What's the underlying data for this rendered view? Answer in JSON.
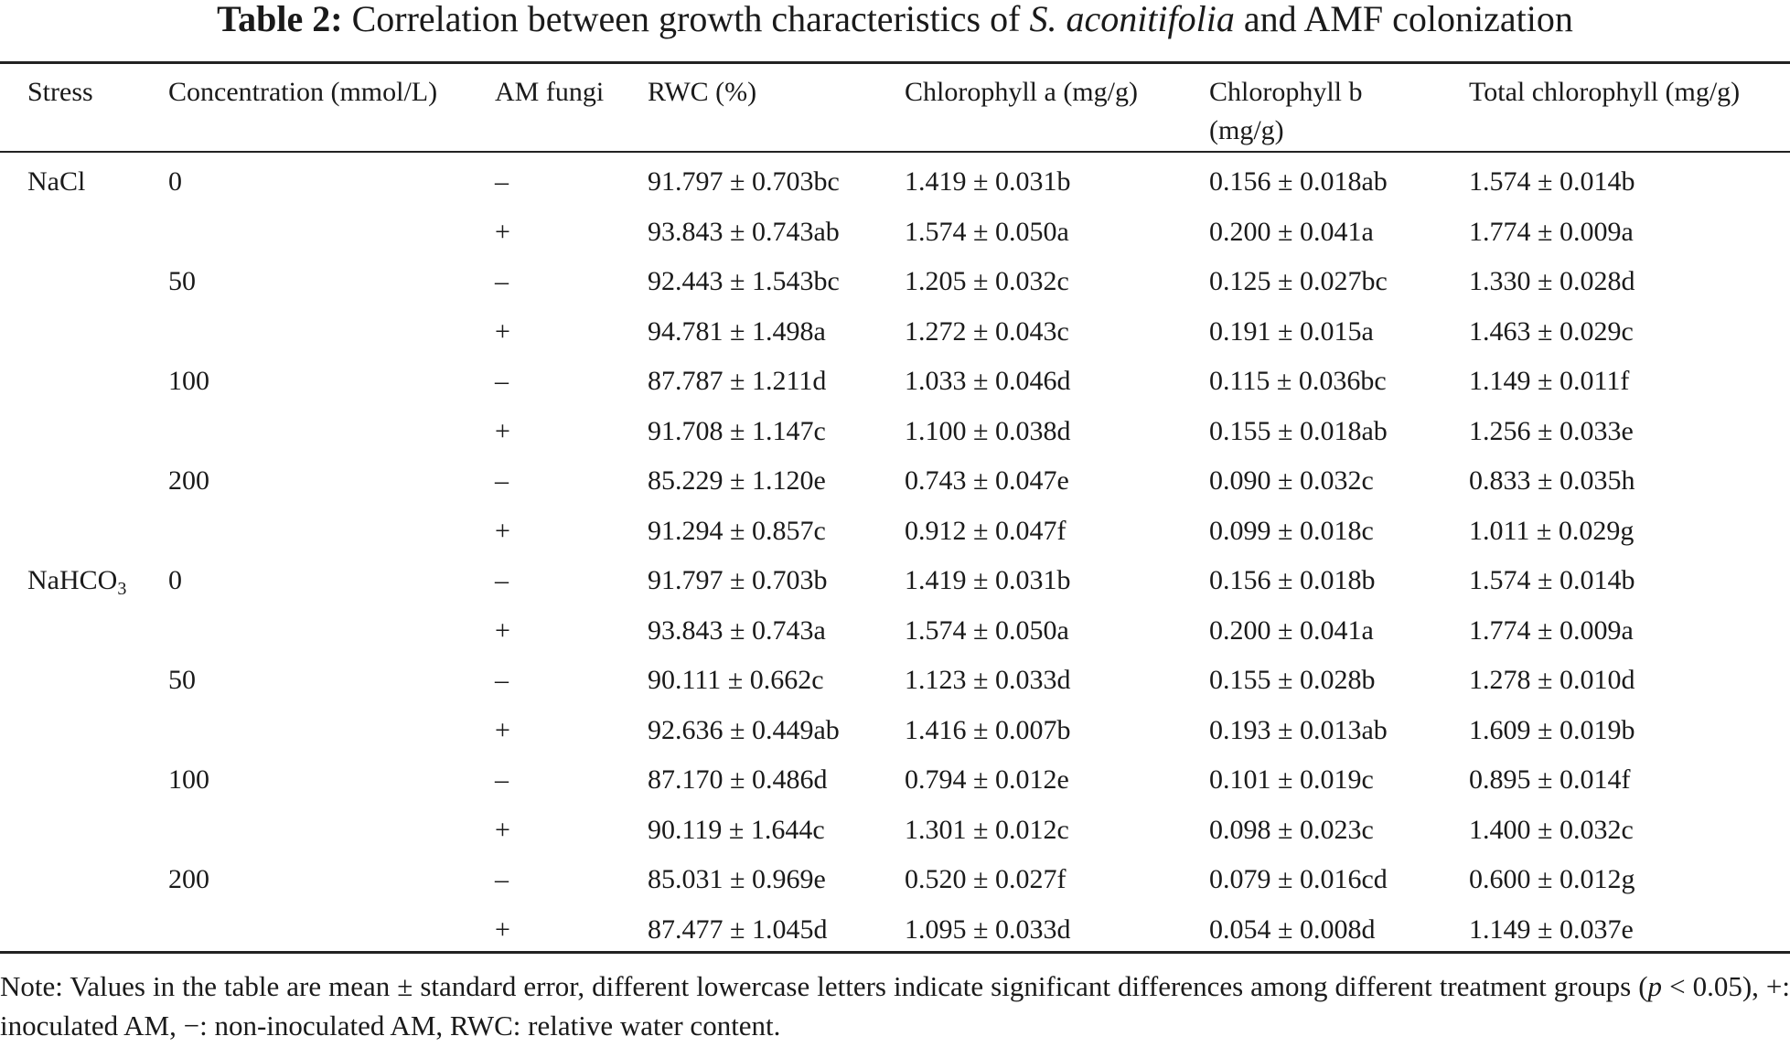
{
  "caption": {
    "label": "Table 2:",
    "pre": "Correlation between growth characteristics of",
    "species": "S. aconitifolia",
    "post": "and AMF colonization"
  },
  "columns": [
    "Stress",
    "Concentration (mmol/L)",
    "AM fungi",
    "RWC (%)",
    "Chlorophyll a (mg/g)",
    "Chlorophyll b (mg/g)",
    "Total chlorophyll (mg/g)"
  ],
  "stress_labels": {
    "nacl": "NaCl",
    "nahco3_base": "NaHCO",
    "nahco3_sub": "3"
  },
  "rows": [
    {
      "conc": "0",
      "am": "–",
      "rwc": "91.797 ± 0.703bc",
      "chla": "1.419 ± 0.031b",
      "chlb": "0.156 ± 0.018ab",
      "total": "1.574 ± 0.014b"
    },
    {
      "conc": "",
      "am": "+",
      "rwc": "93.843 ± 0.743ab",
      "chla": "1.574 ± 0.050a",
      "chlb": "0.200 ± 0.041a",
      "total": "1.774 ± 0.009a"
    },
    {
      "conc": "50",
      "am": "–",
      "rwc": "92.443 ± 1.543bc",
      "chla": "1.205 ± 0.032c",
      "chlb": "0.125 ± 0.027bc",
      "total": "1.330 ± 0.028d"
    },
    {
      "conc": "",
      "am": "+",
      "rwc": "94.781 ± 1.498a",
      "chla": "1.272 ± 0.043c",
      "chlb": "0.191 ± 0.015a",
      "total": "1.463 ± 0.029c"
    },
    {
      "conc": "100",
      "am": "–",
      "rwc": "87.787 ± 1.211d",
      "chla": "1.033 ± 0.046d",
      "chlb": "0.115 ± 0.036bc",
      "total": "1.149 ± 0.011f"
    },
    {
      "conc": "",
      "am": "+",
      "rwc": "91.708 ± 1.147c",
      "chla": "1.100 ± 0.038d",
      "chlb": "0.155 ± 0.018ab",
      "total": "1.256 ± 0.033e"
    },
    {
      "conc": "200",
      "am": "–",
      "rwc": "85.229 ± 1.120e",
      "chla": "0.743 ± 0.047e",
      "chlb": "0.090 ± 0.032c",
      "total": "0.833 ± 0.035h"
    },
    {
      "conc": "",
      "am": "+",
      "rwc": "91.294 ± 0.857c",
      "chla": "0.912 ± 0.047f",
      "chlb": "0.099 ± 0.018c",
      "total": "1.011 ± 0.029g"
    },
    {
      "conc": "0",
      "am": "–",
      "rwc": "91.797 ± 0.703b",
      "chla": "1.419 ± 0.031b",
      "chlb": "0.156 ± 0.018b",
      "total": "1.574 ± 0.014b"
    },
    {
      "conc": "",
      "am": "+",
      "rwc": "93.843 ± 0.743a",
      "chla": "1.574 ± 0.050a",
      "chlb": "0.200 ± 0.041a",
      "total": "1.774 ± 0.009a"
    },
    {
      "conc": "50",
      "am": "–",
      "rwc": "90.111 ± 0.662c",
      "chla": "1.123 ± 0.033d",
      "chlb": "0.155 ± 0.028b",
      "total": "1.278 ± 0.010d"
    },
    {
      "conc": "",
      "am": "+",
      "rwc": "92.636 ± 0.449ab",
      "chla": "1.416 ± 0.007b",
      "chlb": "0.193 ± 0.013ab",
      "total": "1.609 ± 0.019b"
    },
    {
      "conc": "100",
      "am": "–",
      "rwc": "87.170 ± 0.486d",
      "chla": "0.794 ± 0.012e",
      "chlb": "0.101 ± 0.019c",
      "total": "0.895 ± 0.014f"
    },
    {
      "conc": "",
      "am": "+",
      "rwc": "90.119 ± 1.644c",
      "chla": "1.301 ± 0.012c",
      "chlb": "0.098 ± 0.023c",
      "total": "1.400 ± 0.032c"
    },
    {
      "conc": "200",
      "am": "–",
      "rwc": "85.031 ± 0.969e",
      "chla": "0.520 ± 0.027f",
      "chlb": "0.079 ± 0.016cd",
      "total": "0.600 ± 0.012g"
    },
    {
      "conc": "",
      "am": "+",
      "rwc": "87.477 ± 1.045d",
      "chla": "1.095 ± 0.033d",
      "chlb": "0.054 ± 0.008d",
      "total": "1.149 ± 0.037e"
    }
  ],
  "note": {
    "pre": "Note: Values in the table are mean ± standard error, different lowercase letters indicate significant differences among different treatment groups (",
    "p": "p",
    "post": " < 0.05), +: inoculated AM, −: non-inoculated AM, RWC: relative water content."
  }
}
